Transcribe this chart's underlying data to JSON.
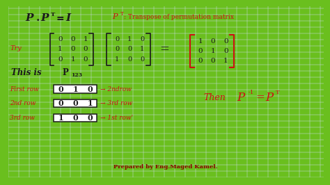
{
  "bg_outer": "#6abf1e",
  "bg_inner": "#f5f3ee",
  "grid_color": "#ccdde8",
  "matrix_P": [
    [
      "0",
      "0",
      "1"
    ],
    [
      "1",
      "0",
      "0"
    ],
    [
      "0",
      "1",
      "0"
    ]
  ],
  "matrix_PT": [
    [
      "0",
      "1",
      "0"
    ],
    [
      "0",
      "0",
      "1"
    ],
    [
      "1",
      "0",
      "0"
    ]
  ],
  "matrix_I": [
    [
      "1",
      "0",
      "0"
    ],
    [
      "0",
      "1",
      "0"
    ],
    [
      "0",
      "0",
      "1"
    ]
  ],
  "row_labels": [
    "First row",
    "2nd row",
    "3rd row"
  ],
  "row_data": [
    [
      "0",
      "1",
      "0"
    ],
    [
      "0",
      "0",
      "1"
    ],
    [
      "1",
      "0",
      "0"
    ]
  ],
  "row_arrows": [
    "→ 2ndrow",
    "→ 3rd row",
    "→ 1st row'"
  ],
  "prepared": "Prepared by Eng.Maged Kamel.",
  "black": "#1a1a1a",
  "red": "#cc1111"
}
